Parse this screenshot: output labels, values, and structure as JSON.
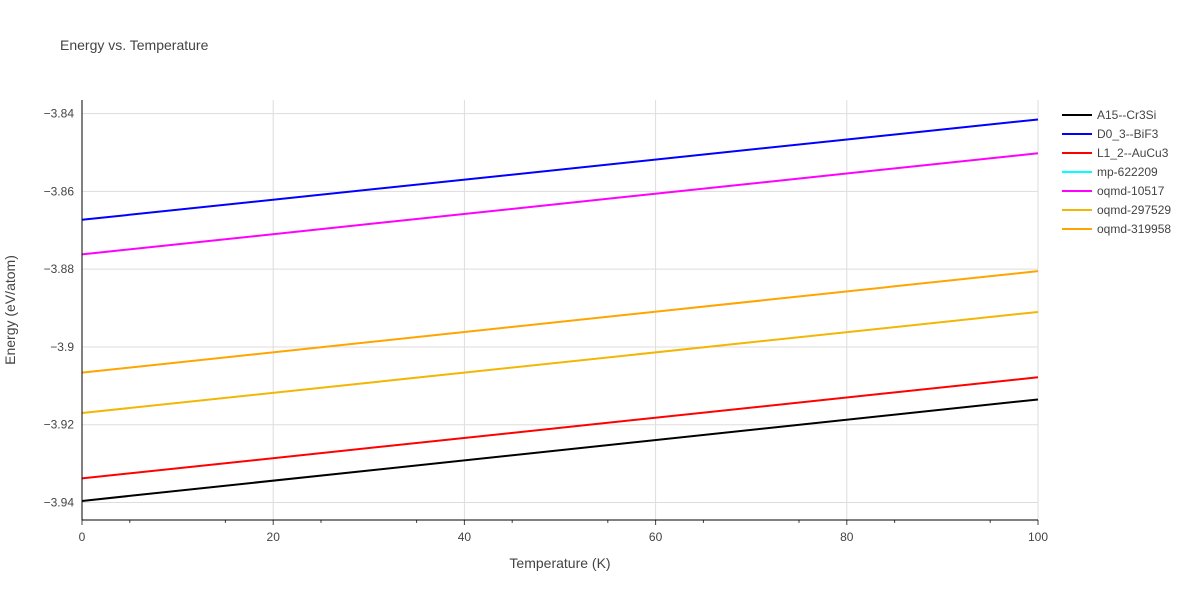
{
  "chart_data": {
    "type": "line",
    "title": "Energy vs. Temperature",
    "xlabel": "Temperature (K)",
    "ylabel": "Energy (eV/atom)",
    "xlim": [
      0,
      100
    ],
    "ylim": [
      -3.9445,
      -3.8365
    ],
    "xticks": [
      0,
      20,
      40,
      60,
      80,
      100
    ],
    "yticks": [
      -3.94,
      -3.92,
      -3.9,
      -3.88,
      -3.86,
      -3.84
    ],
    "ytick_labels": [
      "−3.94",
      "−3.92",
      "−3.9",
      "−3.88",
      "−3.86",
      "−3.84"
    ],
    "grid": true,
    "legend_position": "right",
    "series": [
      {
        "name": "A15--Cr3Si",
        "color": "#000000",
        "x": [
          0,
          100
        ],
        "y": [
          -3.9396,
          -3.9135
        ]
      },
      {
        "name": "D0_3--BiF3",
        "color": "#0000ff",
        "x": [
          0,
          100
        ],
        "y": [
          -3.8673,
          -3.8415
        ]
      },
      {
        "name": "L1_2--AuCu3",
        "color": "#ff0000",
        "x": [
          0,
          100
        ],
        "y": [
          -3.9338,
          -3.9078
        ]
      },
      {
        "name": "mp-622209",
        "color": "#00ffff",
        "x": [],
        "y": []
      },
      {
        "name": "oqmd-10517",
        "color": "#ff00ff",
        "x": [
          0,
          100
        ],
        "y": [
          -3.8762,
          -3.8502
        ]
      },
      {
        "name": "oqmd-297529",
        "color": "#f2b705",
        "x": [
          0,
          100
        ],
        "y": [
          -3.917,
          -3.891
        ]
      },
      {
        "name": "oqmd-319958",
        "color": "#ffa500",
        "x": [
          0,
          100
        ],
        "y": [
          -3.9066,
          -3.8805
        ]
      }
    ]
  }
}
